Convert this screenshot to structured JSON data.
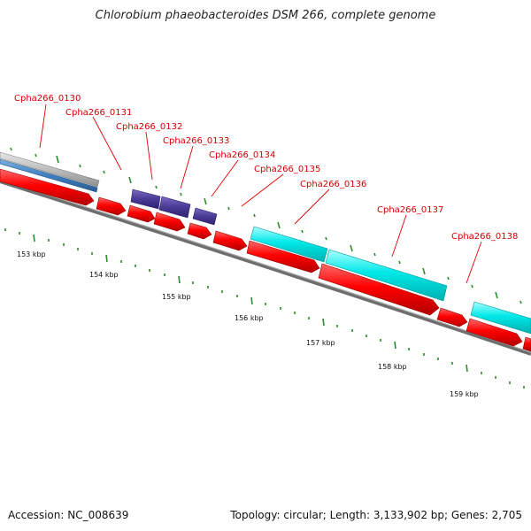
{
  "title": "Chlorobium phaeobacteroides DSM 266, complete genome",
  "accession": "Accession: NC_008639",
  "topology": "Topology: circular; Length: 3,133,902 bp; Genes: 2,705",
  "colors": {
    "cds": "#ff0000",
    "blue_feature": "#3f7fbf",
    "gray_feature": "#b5b5b5",
    "purple_feature": "#4a3a96",
    "cyan_feature": "#00e6e6",
    "backbone": "#808080",
    "tick": "#2e8b2e",
    "label": "#d40000"
  },
  "gene_labels": [
    "Cpha266_0130",
    "Cpha266_0131",
    "Cpha266_0132",
    "Cpha266_0133",
    "Cpha266_0134",
    "Cpha266_0135",
    "Cpha266_0136",
    "Cpha266_0137",
    "Cpha266_0138"
  ],
  "tick_labels": [
    "153 kbp",
    "154 kbp",
    "155 kbp",
    "156 kbp",
    "157 kbp",
    "158 kbp",
    "159 kbp"
  ]
}
